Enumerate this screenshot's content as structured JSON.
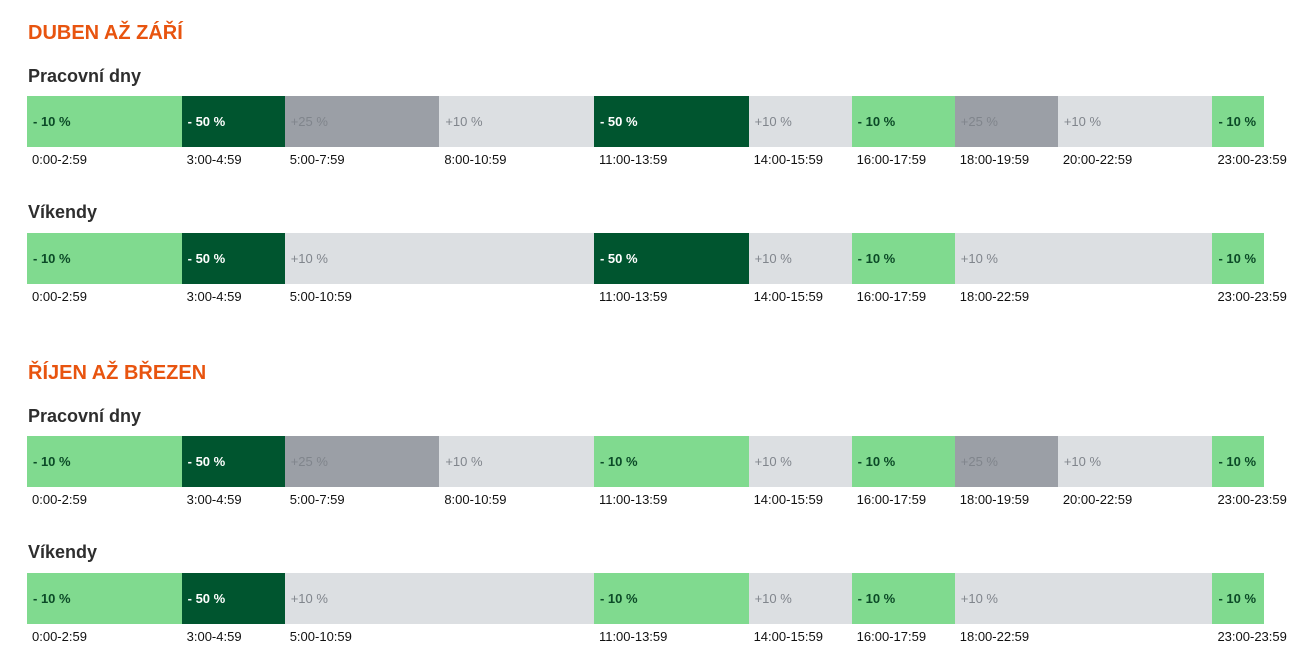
{
  "sections": [
    {
      "title": "DUBEN AŽ ZÁŘÍ",
      "rows": [
        {
          "title": "Pracovní dny",
          "segments": [
            {
              "label": "- 10 %",
              "time": "0:00-2:59",
              "color": "#80da8f"
            },
            {
              "label": "- 50 %",
              "time": "3:00-4:59",
              "color": "#00552f"
            },
            {
              "label": "+25 %",
              "time": "5:00-7:59",
              "color": "#9b9fa6"
            },
            {
              "label": "+10 %",
              "time": "8:00-10:59",
              "color": "#dcdfe2"
            },
            {
              "label": "- 50 %",
              "time": "11:00-13:59",
              "color": "#00552f"
            },
            {
              "label": "+10 %",
              "time": "14:00-15:59",
              "color": "#dcdfe2"
            },
            {
              "label": "- 10 %",
              "time": "16:00-17:59",
              "color": "#80da8f"
            },
            {
              "label": "+25 %",
              "time": "18:00-19:59",
              "color": "#9b9fa6"
            },
            {
              "label": "+10 %",
              "time": "20:00-22:59",
              "color": "#dcdfe2"
            },
            {
              "label": "- 10 %",
              "time": "23:00-23:59",
              "color": "#80da8f"
            }
          ]
        },
        {
          "title": "Víkendy",
          "segments": [
            {
              "label": "- 10 %",
              "time": "0:00-2:59",
              "color": "#80da8f"
            },
            {
              "label": "- 50 %",
              "time": "3:00-4:59",
              "color": "#00552f"
            },
            {
              "label": "+10 %",
              "time": "5:00-10:59",
              "color": "#dcdfe2"
            },
            {
              "label": "- 50 %",
              "time": "11:00-13:59",
              "color": "#00552f"
            },
            {
              "label": "+10 %",
              "time": "14:00-15:59",
              "color": "#dcdfe2"
            },
            {
              "label": "- 10 %",
              "time": "16:00-17:59",
              "color": "#80da8f"
            },
            {
              "label": "+10 %",
              "time": "18:00-22:59",
              "color": "#dcdfe2"
            },
            {
              "label": "- 10 %",
              "time": "23:00-23:59",
              "color": "#80da8f"
            }
          ]
        }
      ]
    },
    {
      "title": "ŘÍJEN AŽ BŘEZEN",
      "rows": [
        {
          "title": "Pracovní dny",
          "segments": [
            {
              "label": "- 10 %",
              "time": "0:00-2:59",
              "color": "#80da8f"
            },
            {
              "label": "- 50 %",
              "time": "3:00-4:59",
              "color": "#00552f"
            },
            {
              "label": "+25 %",
              "time": "5:00-7:59",
              "color": "#9b9fa6"
            },
            {
              "label": "+10 %",
              "time": "8:00-10:59",
              "color": "#dcdfe2"
            },
            {
              "label": "- 10 %",
              "time": "11:00-13:59",
              "color": "#80da8f"
            },
            {
              "label": "+10 %",
              "time": "14:00-15:59",
              "color": "#dcdfe2"
            },
            {
              "label": "- 10 %",
              "time": "16:00-17:59",
              "color": "#80da8f"
            },
            {
              "label": "+25 %",
              "time": "18:00-19:59",
              "color": "#9b9fa6"
            },
            {
              "label": "+10 %",
              "time": "20:00-22:59",
              "color": "#dcdfe2"
            },
            {
              "label": "- 10 %",
              "time": "23:00-23:59",
              "color": "#80da8f"
            }
          ]
        },
        {
          "title": "Víkendy",
          "segments": [
            {
              "label": "- 10 %",
              "time": "0:00-2:59",
              "color": "#80da8f"
            },
            {
              "label": "- 50 %",
              "time": "3:00-4:59",
              "color": "#00552f"
            },
            {
              "label": "+10 %",
              "time": "5:00-10:59",
              "color": "#dcdfe2"
            },
            {
              "label": "- 10 %",
              "time": "11:00-13:59",
              "color": "#80da8f"
            },
            {
              "label": "+10 %",
              "time": "14:00-15:59",
              "color": "#dcdfe2"
            },
            {
              "label": "- 10 %",
              "time": "16:00-17:59",
              "color": "#80da8f"
            },
            {
              "label": "+10 %",
              "time": "18:00-22:59",
              "color": "#dcdfe2"
            },
            {
              "label": "- 10 %",
              "time": "23:00-23:59",
              "color": "#80da8f"
            }
          ]
        }
      ]
    }
  ]
}
